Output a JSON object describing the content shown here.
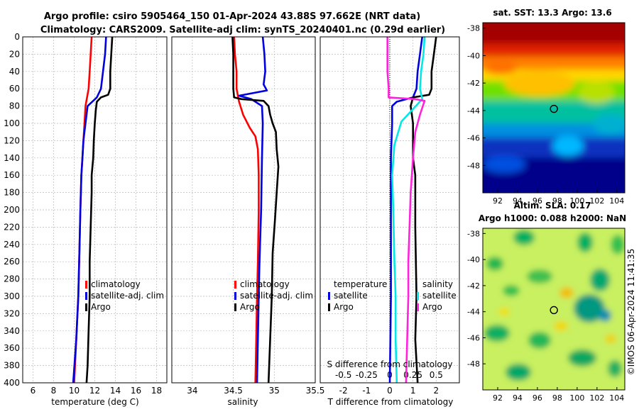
{
  "header": {
    "title_line1": "Argo profile: csiro 5905464_150 01-Apr-2024 43.88S 97.662E (NRT data)",
    "title_line2": "Climatology: CARS2009. Satellite-adj clim: synTS_20240401.nc (0.29d earlier)"
  },
  "credit": "©IMOS 06-Apr-2024 11:41:35",
  "colors": {
    "red": "#ff0000",
    "blue": "#0000dd",
    "black": "#000000",
    "magenta": "#ff22dd",
    "cyan": "#00e8e8",
    "grid": "#b8b8b8"
  },
  "depth_ticks": [
    0,
    20,
    40,
    60,
    80,
    100,
    120,
    140,
    160,
    180,
    200,
    220,
    240,
    260,
    280,
    300,
    320,
    340,
    360,
    380,
    400
  ],
  "chart_data": [
    {
      "type": "line",
      "name": "temperature",
      "xlabel": "temperature (deg C)",
      "ylabel": "depth",
      "xlim": [
        5,
        19
      ],
      "ylim": [
        0,
        400
      ],
      "xticks": [
        6,
        8,
        10,
        12,
        14,
        16,
        18
      ],
      "legend": [
        "climatology",
        "satellite-adj. clim",
        "Argo"
      ],
      "series": [
        {
          "name": "climatology",
          "color": "#ff0000",
          "points": [
            [
              11.7,
              0
            ],
            [
              11.6,
              20
            ],
            [
              11.5,
              40
            ],
            [
              11.4,
              60
            ],
            [
              11.1,
              80
            ],
            [
              11.0,
              100
            ],
            [
              10.9,
              120
            ],
            [
              10.8,
              140
            ],
            [
              10.7,
              160
            ],
            [
              10.6,
              200
            ],
            [
              10.5,
              250
            ],
            [
              10.4,
              300
            ],
            [
              10.2,
              350
            ],
            [
              10.0,
              400
            ]
          ]
        },
        {
          "name": "satellite-adj. clim",
          "color": "#0000dd",
          "points": [
            [
              13.1,
              0
            ],
            [
              13.0,
              20
            ],
            [
              12.8,
              40
            ],
            [
              12.6,
              60
            ],
            [
              12.2,
              70
            ],
            [
              11.3,
              80
            ],
            [
              11.2,
              90
            ],
            [
              11.1,
              100
            ],
            [
              10.9,
              120
            ],
            [
              10.8,
              140
            ],
            [
              10.7,
              160
            ],
            [
              10.6,
              200
            ],
            [
              10.5,
              250
            ],
            [
              10.4,
              300
            ],
            [
              10.2,
              350
            ],
            [
              9.9,
              400
            ]
          ]
        },
        {
          "name": "Argo",
          "color": "#000000",
          "points": [
            [
              13.7,
              0
            ],
            [
              13.6,
              20
            ],
            [
              13.5,
              40
            ],
            [
              13.5,
              60
            ],
            [
              13.3,
              67
            ],
            [
              12.6,
              70
            ],
            [
              12.2,
              75
            ],
            [
              12.1,
              85
            ],
            [
              12.0,
              100
            ],
            [
              11.9,
              120
            ],
            [
              11.85,
              140
            ],
            [
              11.7,
              160
            ],
            [
              11.7,
              180
            ],
            [
              11.6,
              220
            ],
            [
              11.5,
              260
            ],
            [
              11.5,
              300
            ],
            [
              11.4,
              340
            ],
            [
              11.3,
              380
            ],
            [
              11.2,
              400
            ]
          ]
        }
      ]
    },
    {
      "type": "line",
      "name": "salinity",
      "xlabel": "salinity",
      "ylabel": "depth",
      "xlim": [
        33.75,
        35.5
      ],
      "ylim": [
        0,
        400
      ],
      "xticks": [
        34,
        34.5,
        35,
        35.5
      ],
      "legend": [
        "climatology",
        "satellite-adj. clim",
        "Argo"
      ],
      "series": [
        {
          "name": "climatology",
          "color": "#ff0000",
          "points": [
            [
              34.51,
              0
            ],
            [
              34.52,
              20
            ],
            [
              34.54,
              40
            ],
            [
              34.54,
              60
            ],
            [
              34.57,
              75
            ],
            [
              34.62,
              90
            ],
            [
              34.7,
              105
            ],
            [
              34.77,
              115
            ],
            [
              34.8,
              130
            ],
            [
              34.81,
              160
            ],
            [
              34.81,
              200
            ],
            [
              34.8,
              260
            ],
            [
              34.79,
              300
            ],
            [
              34.78,
              350
            ],
            [
              34.77,
              400
            ]
          ]
        },
        {
          "name": "satellite-adj. clim",
          "color": "#0000dd",
          "points": [
            [
              34.86,
              0
            ],
            [
              34.88,
              20
            ],
            [
              34.89,
              40
            ],
            [
              34.87,
              55
            ],
            [
              34.91,
              62
            ],
            [
              34.57,
              68
            ],
            [
              34.72,
              72
            ],
            [
              34.85,
              80
            ],
            [
              34.86,
              100
            ],
            [
              34.85,
              140
            ],
            [
              34.84,
              200
            ],
            [
              34.82,
              260
            ],
            [
              34.81,
              300
            ],
            [
              34.8,
              350
            ],
            [
              34.79,
              400
            ]
          ]
        },
        {
          "name": "Argo",
          "color": "#000000",
          "points": [
            [
              34.49,
              0
            ],
            [
              34.5,
              20
            ],
            [
              34.5,
              40
            ],
            [
              34.5,
              60
            ],
            [
              34.51,
              70
            ],
            [
              34.6,
              72
            ],
            [
              34.87,
              74
            ],
            [
              34.93,
              80
            ],
            [
              34.95,
              90
            ],
            [
              34.98,
              100
            ],
            [
              35.02,
              110
            ],
            [
              35.03,
              130
            ],
            [
              35.05,
              150
            ],
            [
              35.03,
              180
            ],
            [
              35.01,
              210
            ],
            [
              34.98,
              250
            ],
            [
              34.97,
              300
            ],
            [
              34.95,
              350
            ],
            [
              34.93,
              400
            ]
          ]
        }
      ]
    },
    {
      "type": "line",
      "name": "difference",
      "xlabel": "T difference from climatology",
      "xlabel2": "S difference from climatology",
      "ylabel": "depth",
      "xlim": [
        -3,
        3
      ],
      "ylim": [
        0,
        400
      ],
      "xticks": [
        -2,
        -1,
        0,
        1,
        2
      ],
      "xticks_s": [
        -0.5,
        -0.25,
        0,
        0.25,
        0.5
      ],
      "xticks_s_labels": [
        "-0.5",
        "-0.25",
        "0",
        "0.25",
        "0.5"
      ],
      "legend_left_title": "temperature",
      "legend_right_title": "salinity",
      "legend_left": [
        "satellite",
        "Argo"
      ],
      "legend_right": [
        "satellite",
        "Argo"
      ],
      "series": [
        {
          "name": "T satellite",
          "color": "#0000dd",
          "points": [
            [
              1.4,
              0
            ],
            [
              1.3,
              20
            ],
            [
              1.2,
              40
            ],
            [
              1.15,
              60
            ],
            [
              1.0,
              70
            ],
            [
              0.3,
              75
            ],
            [
              0.1,
              80
            ],
            [
              0.1,
              100
            ],
            [
              0.05,
              140
            ],
            [
              0.05,
              200
            ],
            [
              0.05,
              300
            ],
            [
              0.0,
              400
            ]
          ]
        },
        {
          "name": "T Argo",
          "color": "#000000",
          "points": [
            [
              2.0,
              0
            ],
            [
              1.9,
              20
            ],
            [
              1.8,
              40
            ],
            [
              1.8,
              60
            ],
            [
              1.7,
              67
            ],
            [
              1.0,
              70
            ],
            [
              0.9,
              80
            ],
            [
              1.0,
              100
            ],
            [
              1.0,
              140
            ],
            [
              1.1,
              160
            ],
            [
              1.1,
              220
            ],
            [
              1.15,
              300
            ],
            [
              1.1,
              350
            ],
            [
              1.2,
              400
            ]
          ]
        },
        {
          "name": "S satellite",
          "color": "#00e8e8",
          "points": [
            [
              1.5,
              0
            ],
            [
              1.45,
              20
            ],
            [
              1.35,
              40
            ],
            [
              1.3,
              60
            ],
            [
              1.4,
              72
            ],
            [
              0.5,
              98
            ],
            [
              0.2,
              125
            ],
            [
              0.1,
              160
            ],
            [
              0.15,
              200
            ],
            [
              0.2,
              260
            ],
            [
              0.25,
              300
            ],
            [
              0.25,
              350
            ],
            [
              0.3,
              400
            ]
          ]
        },
        {
          "name": "S Argo",
          "color": "#ff22dd",
          "points": [
            [
              -0.1,
              0
            ],
            [
              -0.1,
              20
            ],
            [
              -0.1,
              40
            ],
            [
              -0.05,
              60
            ],
            [
              -0.05,
              70
            ],
            [
              1.1,
              72
            ],
            [
              1.5,
              74
            ],
            [
              1.3,
              90
            ],
            [
              1.1,
              110
            ],
            [
              1.0,
              140
            ],
            [
              0.9,
              180
            ],
            [
              0.85,
              220
            ],
            [
              0.8,
              260
            ],
            [
              0.8,
              300
            ],
            [
              0.75,
              350
            ],
            [
              0.7,
              400
            ]
          ]
        }
      ]
    },
    {
      "type": "heatmap",
      "name": "sst-map",
      "title": "sat. SST: 13.3 Argo: 13.6",
      "xticks": [
        "92",
        "94",
        "96",
        "98",
        "100",
        "102",
        "104"
      ],
      "yticks": [
        "-38",
        "-40",
        "-42",
        "-44",
        "-46",
        "-48"
      ],
      "xlim": [
        90.5,
        104.8
      ],
      "ylim": [
        -50,
        -37.6
      ],
      "marker": [
        97.662,
        -43.88
      ]
    },
    {
      "type": "heatmap",
      "name": "sla-map",
      "title": "Altim. SLA: 0.17",
      "subtitle": "Argo h1000: 0.088 h2000: NaN",
      "xticks": [
        "92",
        "94",
        "96",
        "98",
        "100",
        "102",
        "104"
      ],
      "yticks": [
        "-38",
        "-40",
        "-42",
        "-44",
        "-46",
        "-48"
      ],
      "xlim": [
        90.5,
        104.8
      ],
      "ylim": [
        -50,
        -37.6
      ],
      "marker": [
        97.662,
        -43.88
      ]
    }
  ]
}
